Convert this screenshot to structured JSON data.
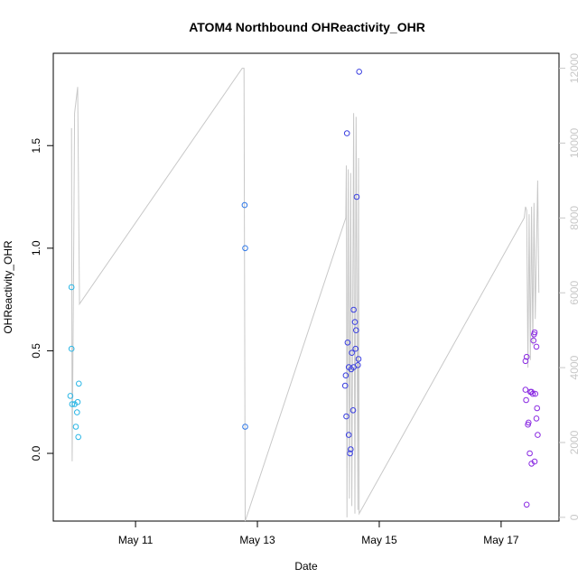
{
  "chart_data": {
    "type": "scatter",
    "title": "ATOM4 Northbound OHReactivity_OHR",
    "xlabel": "Date",
    "ylabel": "OHReactivity_OHR",
    "x_unit": "days since May 10 00:00",
    "xlim": [
      9.65,
      17.95
    ],
    "ylim": [
      -0.33,
      1.95
    ],
    "y2lim": [
      -100,
      12400
    ],
    "x_ticks": [
      {
        "value": 11,
        "label": "May 11"
      },
      {
        "value": 13,
        "label": "May 13"
      },
      {
        "value": 15,
        "label": "May 15"
      },
      {
        "value": 17,
        "label": "May 17"
      }
    ],
    "y_ticks": [
      {
        "value": 0.0,
        "label": "0.0"
      },
      {
        "value": 0.5,
        "label": "0.5"
      },
      {
        "value": 1.0,
        "label": "1.0"
      },
      {
        "value": 1.5,
        "label": "1.5"
      }
    ],
    "y2_ticks": [
      {
        "value": 0,
        "label": "0"
      },
      {
        "value": 2000,
        "label": "2000"
      },
      {
        "value": 4000,
        "label": "4000"
      },
      {
        "value": 6000,
        "label": "6000"
      },
      {
        "value": 8000,
        "label": "8000"
      },
      {
        "value": 10000,
        "label": "10000"
      },
      {
        "value": 12000,
        "label": "12000"
      }
    ],
    "points": [
      {
        "x": 9.93,
        "y": 0.28,
        "color": "#29b6e6"
      },
      {
        "x": 9.95,
        "y": 0.81,
        "color": "#29b6e6"
      },
      {
        "x": 9.95,
        "y": 0.51,
        "color": "#29b6e6"
      },
      {
        "x": 9.96,
        "y": 0.24,
        "color": "#29b6e6"
      },
      {
        "x": 10.0,
        "y": 0.24,
        "color": "#29b6e6"
      },
      {
        "x": 10.02,
        "y": 0.13,
        "color": "#29b6e6"
      },
      {
        "x": 10.04,
        "y": 0.2,
        "color": "#29b6e6"
      },
      {
        "x": 10.05,
        "y": 0.25,
        "color": "#29b6e6"
      },
      {
        "x": 10.06,
        "y": 0.08,
        "color": "#29b6e6"
      },
      {
        "x": 10.07,
        "y": 0.34,
        "color": "#29b6e6"
      },
      {
        "x": 12.79,
        "y": 1.21,
        "color": "#2f78e8"
      },
      {
        "x": 12.8,
        "y": 1.0,
        "color": "#2f78e8"
      },
      {
        "x": 12.8,
        "y": 0.13,
        "color": "#2f78e8"
      },
      {
        "x": 14.47,
        "y": 1.56,
        "color": "#3a3fe0"
      },
      {
        "x": 14.67,
        "y": 1.86,
        "color": "#3a3fe0"
      },
      {
        "x": 14.63,
        "y": 1.25,
        "color": "#3a3fe0"
      },
      {
        "x": 14.58,
        "y": 0.7,
        "color": "#3a3fe0"
      },
      {
        "x": 14.6,
        "y": 0.64,
        "color": "#3a3fe0"
      },
      {
        "x": 14.62,
        "y": 0.6,
        "color": "#3a3fe0"
      },
      {
        "x": 14.48,
        "y": 0.54,
        "color": "#3a3fe0"
      },
      {
        "x": 14.61,
        "y": 0.51,
        "color": "#3a3fe0"
      },
      {
        "x": 14.55,
        "y": 0.49,
        "color": "#3a3fe0"
      },
      {
        "x": 14.66,
        "y": 0.46,
        "color": "#3a3fe0"
      },
      {
        "x": 14.65,
        "y": 0.43,
        "color": "#3a3fe0"
      },
      {
        "x": 14.58,
        "y": 0.42,
        "color": "#3a3fe0"
      },
      {
        "x": 14.5,
        "y": 0.42,
        "color": "#3a3fe0"
      },
      {
        "x": 14.54,
        "y": 0.41,
        "color": "#3a3fe0"
      },
      {
        "x": 14.45,
        "y": 0.38,
        "color": "#3a3fe0"
      },
      {
        "x": 14.44,
        "y": 0.33,
        "color": "#3a3fe0"
      },
      {
        "x": 14.57,
        "y": 0.21,
        "color": "#3a3fe0"
      },
      {
        "x": 14.46,
        "y": 0.18,
        "color": "#3a3fe0"
      },
      {
        "x": 14.5,
        "y": 0.09,
        "color": "#3a3fe0"
      },
      {
        "x": 14.53,
        "y": 0.02,
        "color": "#3a3fe0"
      },
      {
        "x": 14.52,
        "y": 0.0,
        "color": "#3a3fe0"
      },
      {
        "x": 17.55,
        "y": 0.59,
        "color": "#8a2be2"
      },
      {
        "x": 17.54,
        "y": 0.58,
        "color": "#8a2be2"
      },
      {
        "x": 17.53,
        "y": 0.55,
        "color": "#8a2be2"
      },
      {
        "x": 17.58,
        "y": 0.52,
        "color": "#8a2be2"
      },
      {
        "x": 17.42,
        "y": 0.47,
        "color": "#8a2be2"
      },
      {
        "x": 17.4,
        "y": 0.45,
        "color": "#8a2be2"
      },
      {
        "x": 17.4,
        "y": 0.31,
        "color": "#8a2be2"
      },
      {
        "x": 17.48,
        "y": 0.3,
        "color": "#8a2be2"
      },
      {
        "x": 17.5,
        "y": 0.3,
        "color": "#8a2be2"
      },
      {
        "x": 17.52,
        "y": 0.29,
        "color": "#8a2be2"
      },
      {
        "x": 17.56,
        "y": 0.29,
        "color": "#8a2be2"
      },
      {
        "x": 17.41,
        "y": 0.26,
        "color": "#8a2be2"
      },
      {
        "x": 17.59,
        "y": 0.22,
        "color": "#8a2be2"
      },
      {
        "x": 17.58,
        "y": 0.17,
        "color": "#8a2be2"
      },
      {
        "x": 17.45,
        "y": 0.15,
        "color": "#8a2be2"
      },
      {
        "x": 17.44,
        "y": 0.14,
        "color": "#8a2be2"
      },
      {
        "x": 17.6,
        "y": 0.09,
        "color": "#8a2be2"
      },
      {
        "x": 17.47,
        "y": 0.0,
        "color": "#8a2be2"
      },
      {
        "x": 17.55,
        "y": -0.04,
        "color": "#8a2be2"
      },
      {
        "x": 17.5,
        "y": -0.05,
        "color": "#8a2be2"
      },
      {
        "x": 17.42,
        "y": -0.25,
        "color": "#8a2be2"
      }
    ],
    "secondary_line": {
      "color": "#c8c8c8",
      "axis": "right",
      "points": [
        [
          9.95,
          10400
        ],
        [
          9.96,
          1500
        ],
        [
          9.98,
          6000
        ],
        [
          10.0,
          10800
        ],
        [
          10.05,
          11500
        ],
        [
          10.08,
          5800
        ],
        [
          10.08,
          5700
        ],
        [
          12.75,
          12000
        ],
        [
          12.78,
          12000
        ],
        [
          12.8,
          -100
        ],
        [
          14.45,
          8000
        ],
        [
          14.46,
          9400
        ],
        [
          14.47,
          0.0
        ],
        [
          14.49,
          9300
        ],
        [
          14.51,
          500
        ],
        [
          14.53,
          9200
        ],
        [
          14.55,
          300
        ],
        [
          14.58,
          10800
        ],
        [
          14.6,
          100
        ],
        [
          14.62,
          10700
        ],
        [
          14.65,
          200
        ],
        [
          14.66,
          9600
        ],
        [
          14.67,
          100
        ],
        [
          17.38,
          8000
        ],
        [
          17.4,
          8300
        ],
        [
          17.42,
          8200
        ],
        [
          17.44,
          4000
        ],
        [
          17.46,
          8100
        ],
        [
          17.48,
          4200
        ],
        [
          17.5,
          8300
        ],
        [
          17.52,
          4600
        ],
        [
          17.54,
          8400
        ],
        [
          17.56,
          5300
        ],
        [
          17.6,
          9000
        ],
        [
          17.62,
          6000
        ]
      ]
    }
  }
}
